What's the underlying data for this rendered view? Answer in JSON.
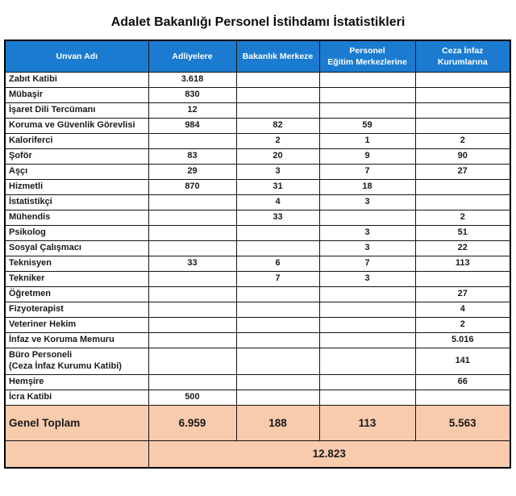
{
  "title": "Adalet Bakanlığı Personel İstihdamı İstatistikleri",
  "colors": {
    "header_bg": "#1b7bd0",
    "header_text": "#ffffff",
    "total_bg": "#f8cbad",
    "border": "#141414"
  },
  "chart_data": {
    "type": "table",
    "title": "Adalet Bakanlığı Personel İstihdamı İstatistikleri",
    "columns": [
      "Unvan Adı",
      "Adliyelere",
      "Bakanlık Merkeze",
      "Personel Eğitim Merkezlerine",
      "Ceza İnfaz Kurumlarına"
    ],
    "grand_total": 12823
  },
  "table": {
    "columns": [
      "Unvan Adı",
      "Adliyelere",
      "Bakanlık Merkeze",
      "Personel\nEğitim Merkezlerine",
      "Ceza İnfaz\nKurumlarına"
    ],
    "rows": [
      {
        "label": "Zabıt Katibi",
        "values": [
          "3.618",
          "",
          "",
          ""
        ]
      },
      {
        "label": "Mübaşir",
        "values": [
          "830",
          "",
          "",
          ""
        ]
      },
      {
        "label": "İşaret Dili Tercümanı",
        "values": [
          "12",
          "",
          "",
          ""
        ]
      },
      {
        "label": "Koruma ve Güvenlik Görevlisi",
        "values": [
          "984",
          "82",
          "59",
          ""
        ]
      },
      {
        "label": "Kaloriferci",
        "values": [
          "",
          "2",
          "1",
          "2"
        ]
      },
      {
        "label": "Şoför",
        "values": [
          "83",
          "20",
          "9",
          "90"
        ]
      },
      {
        "label": "Aşçı",
        "values": [
          "29",
          "3",
          "7",
          "27"
        ]
      },
      {
        "label": "Hizmetli",
        "values": [
          "870",
          "31",
          "18",
          ""
        ]
      },
      {
        "label": "İstatistikçi",
        "values": [
          "",
          "4",
          "3",
          ""
        ]
      },
      {
        "label": "Mühendis",
        "values": [
          "",
          "33",
          "",
          "2"
        ]
      },
      {
        "label": "Psikolog",
        "values": [
          "",
          "",
          "3",
          "51"
        ]
      },
      {
        "label": "Sosyal Çalışmacı",
        "values": [
          "",
          "",
          "3",
          "22"
        ]
      },
      {
        "label": "Teknisyen",
        "values": [
          "33",
          "6",
          "7",
          "113"
        ]
      },
      {
        "label": "Tekniker",
        "values": [
          "",
          "7",
          "3",
          ""
        ]
      },
      {
        "label": "Öğretmen",
        "values": [
          "",
          "",
          "",
          "27"
        ]
      },
      {
        "label": "Fizyoterapist",
        "values": [
          "",
          "",
          "",
          "4"
        ]
      },
      {
        "label": "Veteriner Hekim",
        "values": [
          "",
          "",
          "",
          "2"
        ]
      },
      {
        "label": "İnfaz ve Koruma Memuru",
        "values": [
          "",
          "",
          "",
          "5.016"
        ]
      },
      {
        "label": "Büro Personeli\n(Ceza İnfaz Kurumu Katibi)",
        "values": [
          "",
          "",
          "",
          "141"
        ],
        "tall": true
      },
      {
        "label": "Hemşire",
        "values": [
          "",
          "",
          "",
          "66"
        ]
      },
      {
        "label": "İcra Katibi",
        "values": [
          "500",
          "",
          "",
          ""
        ]
      }
    ],
    "total_row": {
      "label": "Genel Toplam",
      "values": [
        "6.959",
        "188",
        "113",
        "5.563"
      ]
    },
    "grand_total": "12.823"
  }
}
